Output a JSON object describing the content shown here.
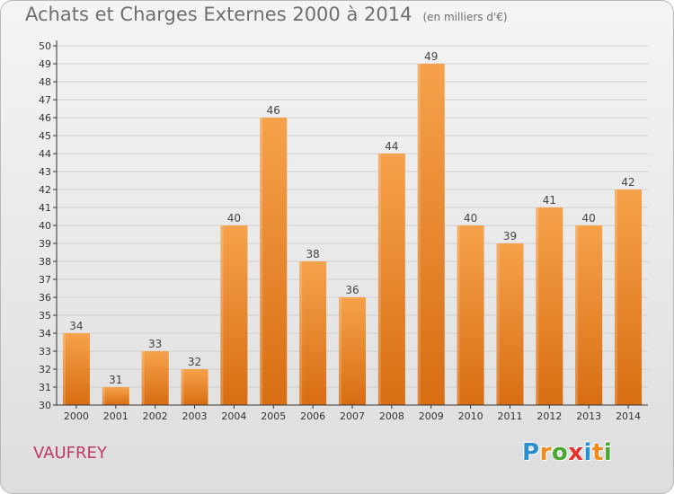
{
  "title": "Achats et Charges Externes 2000 à 2014",
  "unit": "(en milliers d'€)",
  "commune": "VAUFREY",
  "logo": {
    "text": "Proxiti",
    "letter_colors": [
      "#2a8fd0",
      "#f08a1c",
      "#49a832",
      "#e5322e",
      "#2a8fd0",
      "#f08a1c",
      "#49a832"
    ]
  },
  "colors": {
    "bar_light": "#f6a24b",
    "bar_dark": "#d86d12",
    "grid": "#d0d0d0",
    "axis": "#333333",
    "title": "#6f6f6f",
    "commune": "#c0396b"
  },
  "chart_data": {
    "type": "bar",
    "title": "Achats et Charges Externes 2000 à 2014",
    "categories": [
      "2000",
      "2001",
      "2002",
      "2003",
      "2004",
      "2005",
      "2006",
      "2007",
      "2008",
      "2009",
      "2010",
      "2011",
      "2012",
      "2013",
      "2014"
    ],
    "values": [
      34,
      31,
      33,
      32,
      40,
      46,
      38,
      36,
      44,
      49,
      40,
      39,
      41,
      40,
      42
    ],
    "ylim": [
      30,
      50
    ],
    "yticks": [
      30,
      31,
      32,
      33,
      34,
      35,
      36,
      37,
      38,
      39,
      40,
      41,
      42,
      43,
      44,
      45,
      46,
      47,
      48,
      49,
      50
    ],
    "grid": true,
    "data_labels": true
  }
}
